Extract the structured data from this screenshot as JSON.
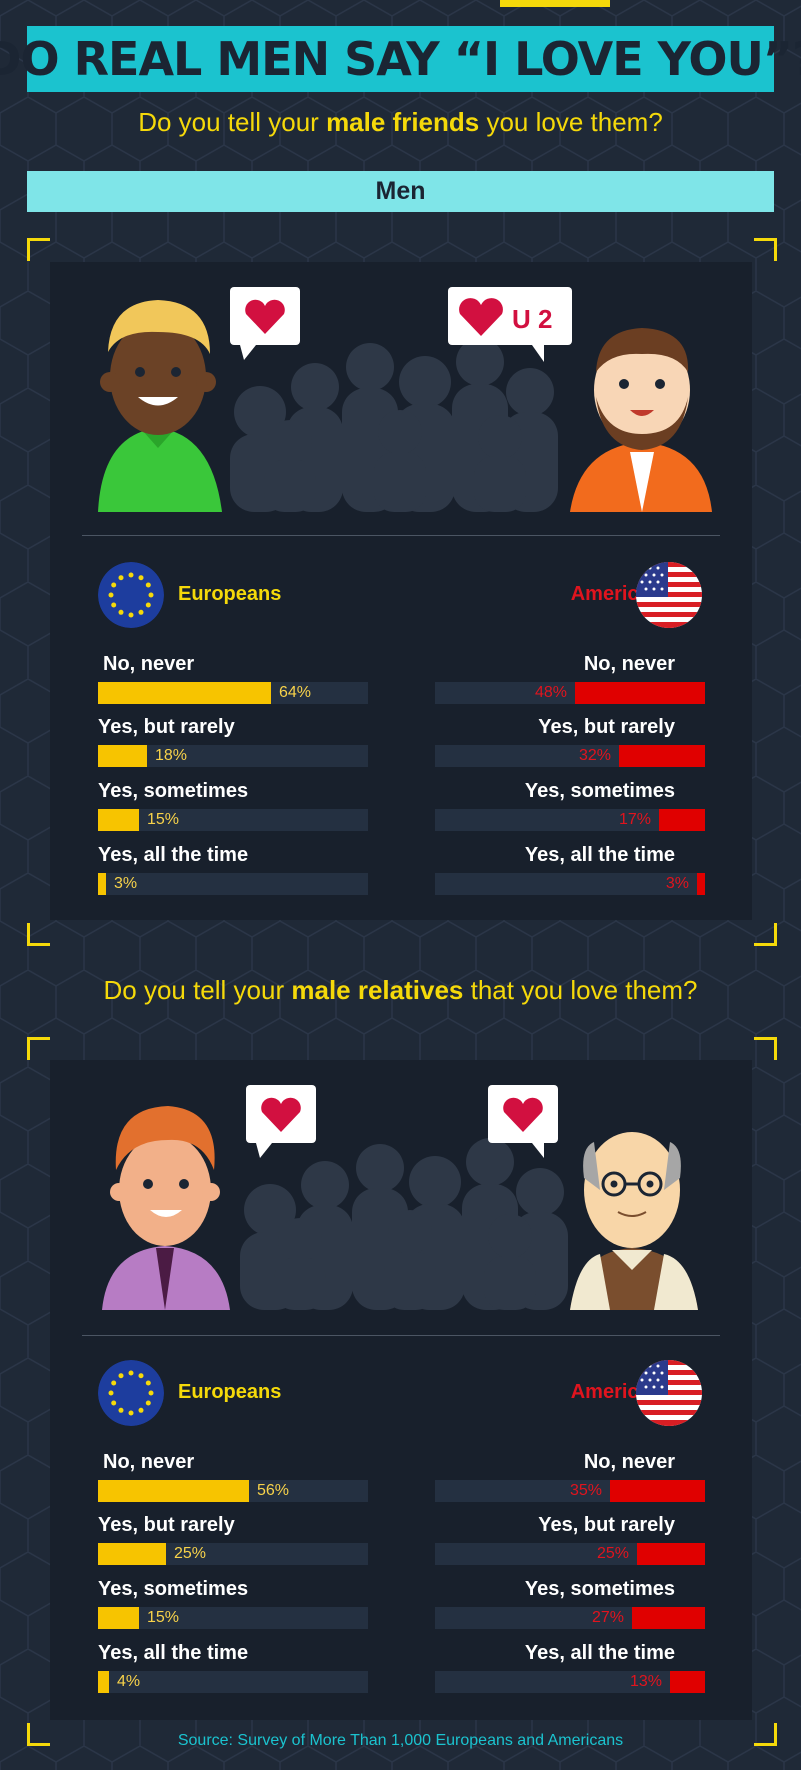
{
  "title": "DO REAL MEN SAY “I LOVE YOU”?",
  "q1": {
    "pre": "Do you tell your ",
    "bold": "male friends",
    "post": " you love them?"
  },
  "men_label": "Men",
  "bubble_text": "U 2",
  "q2": {
    "pre": "Do you tell your ",
    "bold": "male relatives",
    "post": " that you love them?"
  },
  "europeans_label": "Europeans",
  "americans_label": "Americans",
  "response_labels": [
    "No, never",
    "Yes, but rarely",
    "Yes, sometimes",
    "Yes, all the time"
  ],
  "sections": [
    {
      "europeans": [
        {
          "label": "No, never",
          "value": 64,
          "text": "64%"
        },
        {
          "label": "Yes, but rarely",
          "value": 18,
          "text": "18%"
        },
        {
          "label": "Yes, sometimes",
          "value": 15,
          "text": "15%"
        },
        {
          "label": "Yes, all the time",
          "value": 3,
          "text": "3%"
        }
      ],
      "americans": [
        {
          "label": "No, never",
          "value": 48,
          "text": "48%"
        },
        {
          "label": "Yes, but rarely",
          "value": 32,
          "text": "32%"
        },
        {
          "label": "Yes, sometimes",
          "value": 17,
          "text": "17%"
        },
        {
          "label": "Yes, all the time",
          "value": 3,
          "text": "3%"
        }
      ]
    },
    {
      "europeans": [
        {
          "label": "No, never",
          "value": 56,
          "text": "56%"
        },
        {
          "label": "Yes, but rarely",
          "value": 25,
          "text": "25%"
        },
        {
          "label": "Yes, sometimes",
          "value": 15,
          "text": "15%"
        },
        {
          "label": "Yes, all the time",
          "value": 4,
          "text": "4%"
        }
      ],
      "americans": [
        {
          "label": "No, never",
          "value": 35,
          "text": "35%"
        },
        {
          "label": "Yes, but rarely",
          "value": 25,
          "text": "25%"
        },
        {
          "label": "Yes, sometimes",
          "value": 27,
          "text": "27%"
        },
        {
          "label": "Yes, all the time",
          "value": 13,
          "text": "13%"
        }
      ]
    }
  ],
  "source": "Source: Survey of More Than 1,000 Europeans and Americans",
  "colors": {
    "background": "#1f2937",
    "panel": "#18202c",
    "accent_cyan": "#1bc3cf",
    "light_cyan": "#7fe5e8",
    "yellow": "#f5d90a",
    "eu_bar": "#f7c400",
    "us_bar": "#e00000",
    "track": "#243041"
  },
  "icons": [
    "eu-flag-icon",
    "us-flag-icon",
    "heart-icon",
    "speech-bubble-icon",
    "crowd-silhouette"
  ]
}
